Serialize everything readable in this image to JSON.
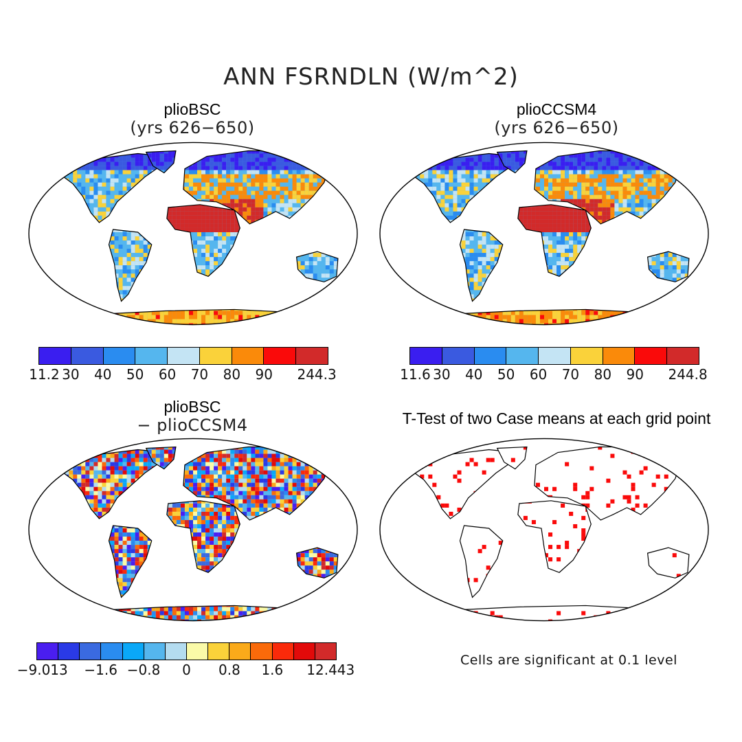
{
  "main_title": "ANN FSRNDLN (W/m^2)",
  "panels": [
    {
      "title": "plioBSC",
      "subtitle": "(yrs 626−650)"
    },
    {
      "title": "plioCCSM4",
      "subtitle": "(yrs 626−650)"
    },
    {
      "title": "plioBSC",
      "subtitle": "− plioCCSM4"
    },
    {
      "title": "T-Test of two Case means at each grid point",
      "subtitle": ""
    }
  ],
  "colorbars": {
    "bsc": {
      "colors": [
        "#3a1ef0",
        "#3a5ae0",
        "#2a8cf0",
        "#55b6ee",
        "#c4e4f4",
        "#fad23a",
        "#fa8a0a",
        "#fa0a0a",
        "#d22a2a"
      ],
      "labels": [
        "11.2",
        "30",
        "40",
        "50",
        "60",
        "70",
        "80",
        "90",
        "244.3"
      ]
    },
    "ccsm4": {
      "colors": [
        "#3a1ef0",
        "#3a5ae0",
        "#2a8cf0",
        "#55b6ee",
        "#c4e4f4",
        "#fad23a",
        "#fa8a0a",
        "#fa0a0a",
        "#d22a2a"
      ],
      "labels": [
        "11.6",
        "30",
        "40",
        "50",
        "60",
        "70",
        "80",
        "90",
        "244.8"
      ]
    },
    "diff": {
      "colors": [
        "#4a1ef0",
        "#2a3ae6",
        "#3a6ae0",
        "#2a8cf0",
        "#0aa8f8",
        "#55b6ee",
        "#b4dcf0",
        "#fafaa8",
        "#fad23a",
        "#faaa1a",
        "#fa6a0a",
        "#fa2a0a",
        "#e20a0a",
        "#d22a2a"
      ],
      "labels": [
        "−9.013",
        "−1.6",
        "−0.8",
        "0",
        "0.8",
        "1.6",
        "12.443"
      ]
    }
  },
  "significance_note": "Cells are significant at 0.1 level"
}
